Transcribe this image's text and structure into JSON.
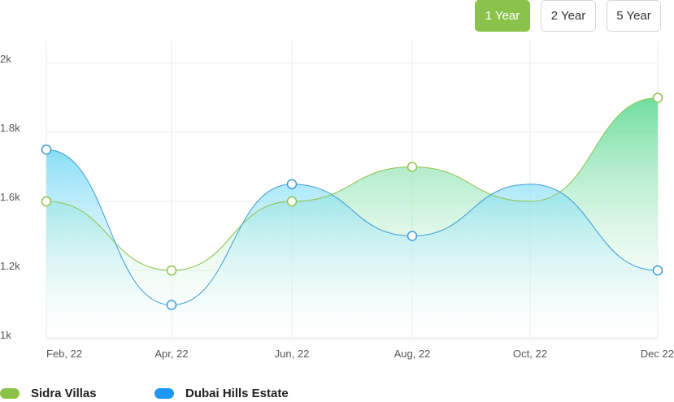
{
  "range_buttons": [
    {
      "label": "1 Year",
      "active": true
    },
    {
      "label": "2 Year",
      "active": false
    },
    {
      "label": "5 Year",
      "active": false
    }
  ],
  "colors": {
    "sidra": "#8bc34a",
    "dubai": "#3d9bd6",
    "legend_dubai": "#2196f3",
    "grid": "#ececec"
  },
  "legend": [
    {
      "label": "Sidra Villas",
      "color": "#8bc34a"
    },
    {
      "label": "Dubai Hills Estate",
      "color": "#2196f3"
    }
  ],
  "chart_data": {
    "type": "area",
    "categories": [
      "Feb, 22",
      "Apr, 22",
      "Jun, 22",
      "Aug, 22",
      "Oct, 22",
      "Dec 22"
    ],
    "y_tick_labels": [
      "2k",
      "1.8k",
      "1.6k",
      "1.2k",
      "1k"
    ],
    "series": [
      {
        "name": "Sidra Villas",
        "points": [
          [
            "Feb, 22",
            "1.6k"
          ],
          [
            "Apr, 22",
            "1.2k"
          ],
          [
            "Jun, 22",
            "1.6k"
          ],
          [
            "Aug, 22",
            "1.7k"
          ],
          [
            "Dec 22",
            "1.9k"
          ]
        ],
        "curve_min_oct": "1.6k"
      },
      {
        "name": "Dubai Hills Estate",
        "points": [
          [
            "Feb, 22",
            "1.75k"
          ],
          [
            "Apr, 22",
            "1.1k"
          ],
          [
            "Jun, 22",
            "1.65k"
          ],
          [
            "Aug, 22",
            "1.4k"
          ],
          [
            "Dec 22",
            "1.2k"
          ]
        ],
        "curve_peak_oct": "1.65k"
      }
    ],
    "grid": true,
    "legend_position": "bottom-left"
  }
}
